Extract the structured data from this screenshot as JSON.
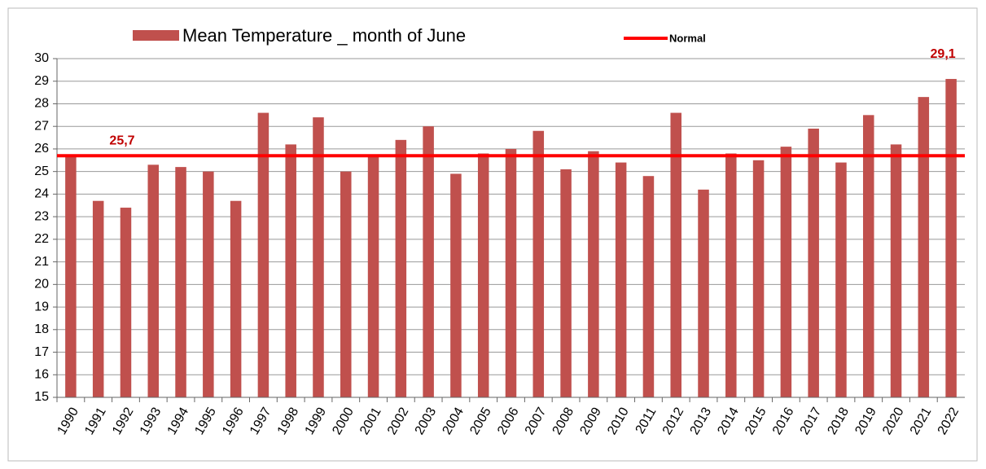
{
  "chart_data": {
    "type": "bar",
    "categories": [
      "1990",
      "1991",
      "1992",
      "1993",
      "1994",
      "1995",
      "1996",
      "1997",
      "1998",
      "1999",
      "2000",
      "2001",
      "2002",
      "2003",
      "2004",
      "2005",
      "2006",
      "2007",
      "2008",
      "2009",
      "2010",
      "2011",
      "2012",
      "2013",
      "2014",
      "2015",
      "2016",
      "2017",
      "2018",
      "2019",
      "2020",
      "2021",
      "2022"
    ],
    "series": [
      {
        "name": "Mean Temperature _ month of June",
        "color": "#c0504d",
        "values": [
          25.7,
          23.7,
          23.4,
          25.3,
          25.2,
          25.0,
          23.7,
          27.6,
          26.2,
          27.4,
          25.0,
          25.7,
          26.4,
          27.0,
          24.9,
          25.8,
          26.0,
          26.8,
          25.1,
          25.9,
          25.4,
          24.8,
          27.6,
          24.2,
          25.8,
          25.5,
          26.1,
          26.9,
          25.4,
          27.5,
          26.2,
          28.3,
          29.1
        ],
        "value_labels": [
          null,
          null,
          null,
          null,
          null,
          null,
          null,
          null,
          null,
          null,
          null,
          null,
          null,
          null,
          null,
          null,
          null,
          null,
          null,
          null,
          null,
          null,
          null,
          null,
          null,
          null,
          null,
          null,
          null,
          null,
          null,
          null,
          "29,1"
        ]
      }
    ],
    "normal": {
      "name": "Normal",
      "value": 25.7,
      "label": "25,7",
      "color": "#ff0000"
    },
    "ylim": [
      15,
      30
    ],
    "yticks": [
      15,
      16,
      17,
      18,
      19,
      20,
      21,
      22,
      23,
      24,
      25,
      26,
      27,
      28,
      29,
      30
    ],
    "grid": true,
    "legend": "top"
  }
}
